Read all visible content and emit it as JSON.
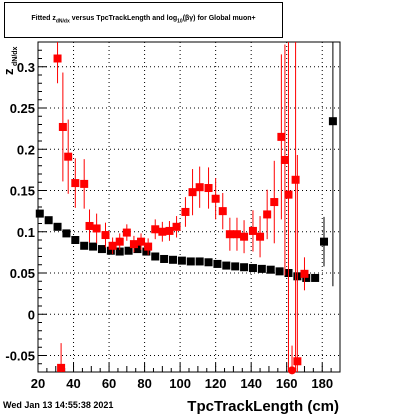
{
  "title": {
    "prefix": "Fitted  z",
    "sub1": "dN/dx",
    "middle": "  versus TpcTrackLength and log",
    "sub2": "10",
    "suffix": "(βγ) for Global muon+"
  },
  "timestamp": "Wed Jan 13 14:55:38 2021",
  "chart_data": {
    "type": "scatter",
    "title": "Fitted z_dN/dx versus TpcTrackLength and log10(βγ) for Global muon+",
    "xlabel": "TpcTrackLength (cm)",
    "ylabel": "z_dN/dx",
    "xlim": [
      20,
      190
    ],
    "ylim": [
      -0.07,
      0.33
    ],
    "x_ticks": [
      20,
      40,
      60,
      80,
      100,
      120,
      140,
      160,
      180
    ],
    "y_ticks": [
      -0.05,
      0,
      0.05,
      0.1,
      0.15,
      0.2,
      0.25,
      0.3
    ],
    "y_tick_labels": [
      "-0.05",
      "0",
      "0.05",
      "0.1",
      "0.15",
      "0.2",
      "0.25",
      "0.3"
    ],
    "grid": true,
    "series": [
      {
        "color": "#000000",
        "marker": "square",
        "points": [
          {
            "x": 21,
            "y": 0.122
          },
          {
            "x": 26,
            "y": 0.114
          },
          {
            "x": 31,
            "y": 0.106
          },
          {
            "x": 36,
            "y": 0.098
          },
          {
            "x": 41,
            "y": 0.09
          },
          {
            "x": 46,
            "y": 0.083
          },
          {
            "x": 51,
            "y": 0.082
          },
          {
            "x": 56,
            "y": 0.079
          },
          {
            "x": 61,
            "y": 0.077
          },
          {
            "x": 66,
            "y": 0.076
          },
          {
            "x": 71,
            "y": 0.077
          },
          {
            "x": 76,
            "y": 0.079
          },
          {
            "x": 81,
            "y": 0.076
          },
          {
            "x": 86,
            "y": 0.07
          },
          {
            "x": 91,
            "y": 0.067
          },
          {
            "x": 96,
            "y": 0.066
          },
          {
            "x": 101,
            "y": 0.065
          },
          {
            "x": 106,
            "y": 0.064
          },
          {
            "x": 111,
            "y": 0.064
          },
          {
            "x": 116,
            "y": 0.063
          },
          {
            "x": 121,
            "y": 0.061
          },
          {
            "x": 126,
            "y": 0.059
          },
          {
            "x": 131,
            "y": 0.058
          },
          {
            "x": 136,
            "y": 0.057
          },
          {
            "x": 141,
            "y": 0.056
          },
          {
            "x": 146,
            "y": 0.055
          },
          {
            "x": 151,
            "y": 0.054
          },
          {
            "x": 156,
            "y": 0.052
          },
          {
            "x": 161,
            "y": 0.05
          },
          {
            "x": 166,
            "y": 0.046
          },
          {
            "x": 171,
            "y": 0.044
          },
          {
            "x": 176,
            "y": 0.044
          },
          {
            "x": 181,
            "y": 0.088,
            "err": 0.03
          },
          {
            "x": 186,
            "y": 0.234,
            "err": 0.2
          }
        ]
      },
      {
        "color": "#ff0000",
        "marker": "square",
        "points": [
          {
            "x": 31,
            "y": 0.31,
            "err": 0.03
          },
          {
            "x": 34,
            "y": 0.227,
            "err": 0.066
          },
          {
            "x": 37,
            "y": 0.191,
            "err": 0.045
          },
          {
            "x": 41,
            "y": 0.159,
            "err": 0.03
          },
          {
            "x": 46,
            "y": 0.158,
            "err": 0.03
          },
          {
            "x": 49,
            "y": 0.107,
            "err": 0.02
          },
          {
            "x": 53,
            "y": 0.104,
            "err": 0.018
          },
          {
            "x": 58,
            "y": 0.096,
            "err": 0.015
          },
          {
            "x": 62,
            "y": 0.083,
            "err": 0.01
          },
          {
            "x": 66,
            "y": 0.088,
            "err": 0.01
          },
          {
            "x": 70,
            "y": 0.099,
            "err": 0.01
          },
          {
            "x": 74,
            "y": 0.085,
            "err": 0.01
          },
          {
            "x": 78,
            "y": 0.088,
            "err": 0.01
          },
          {
            "x": 82,
            "y": 0.082,
            "err": 0.01
          },
          {
            "x": 86,
            "y": 0.103,
            "err": 0.012
          },
          {
            "x": 90,
            "y": 0.1,
            "err": 0.012
          },
          {
            "x": 94,
            "y": 0.101,
            "err": 0.012
          },
          {
            "x": 98,
            "y": 0.106,
            "err": 0.013
          },
          {
            "x": 103,
            "y": 0.124,
            "err": 0.018
          },
          {
            "x": 107,
            "y": 0.148,
            "err": 0.028
          },
          {
            "x": 111,
            "y": 0.154,
            "err": 0.025
          },
          {
            "x": 116,
            "y": 0.153,
            "err": 0.025
          },
          {
            "x": 120,
            "y": 0.14,
            "err": 0.025
          },
          {
            "x": 124,
            "y": 0.125,
            "err": 0.022
          },
          {
            "x": 128,
            "y": 0.097,
            "err": 0.02
          },
          {
            "x": 132,
            "y": 0.097,
            "err": 0.02
          },
          {
            "x": 136,
            "y": 0.094,
            "err": 0.02
          },
          {
            "x": 141,
            "y": 0.101,
            "err": 0.025
          },
          {
            "x": 145,
            "y": 0.094,
            "err": 0.025
          },
          {
            "x": 149,
            "y": 0.121,
            "err": 0.03
          },
          {
            "x": 153,
            "y": 0.136,
            "err": 0.05
          },
          {
            "x": 157,
            "y": 0.215,
            "err": 0.1
          },
          {
            "x": 159,
            "y": 0.187,
            "err": 0.14
          },
          {
            "x": 161,
            "y": 0.145,
            "err": 0.24
          },
          {
            "x": 163,
            "y": -0.068,
            "err": 0.03
          },
          {
            "x": 165,
            "y": 0.163,
            "err": 0.26
          },
          {
            "x": 166,
            "y": -0.057,
            "err": 0.25
          },
          {
            "x": 170,
            "y": 0.049,
            "err": 0.02
          },
          {
            "x": 33,
            "y": -0.065,
            "err": 0.03
          }
        ]
      }
    ]
  }
}
